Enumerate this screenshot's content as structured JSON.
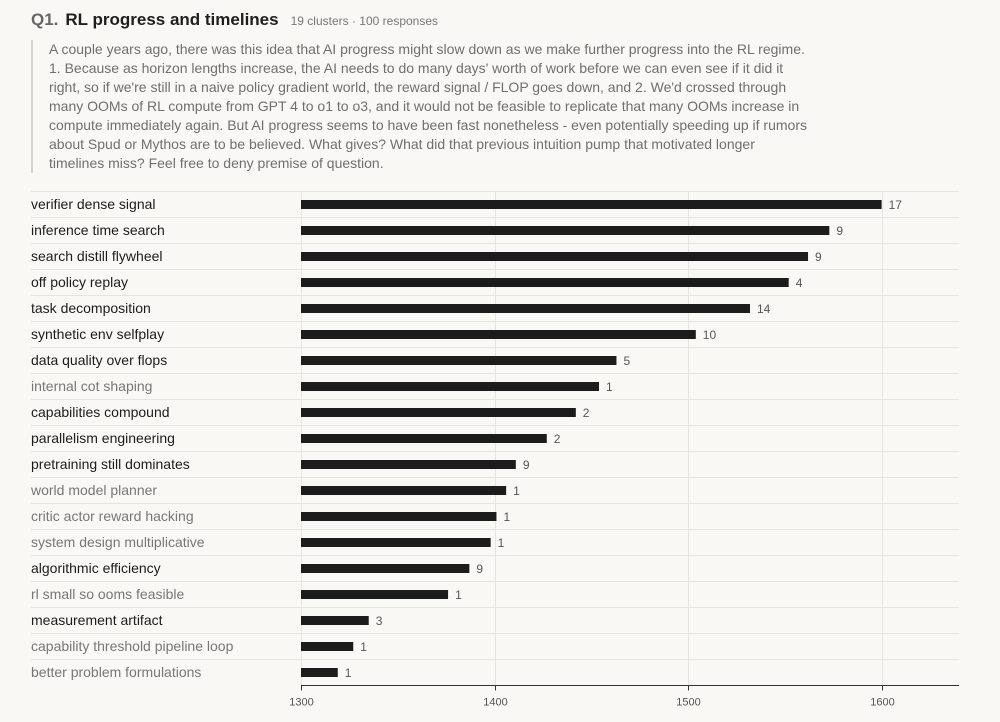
{
  "header": {
    "number": "Q1.",
    "title": "RL progress and timelines",
    "meta": "19 clusters · 100 responses"
  },
  "question": "A couple years ago, there was this idea that AI progress might slow down as we make further progress into the RL regime. 1. Because as horizon lengths increase, the AI needs to do many days' worth of work before we can even see if it did it right, so if we're still in a naive policy gradient world, the reward signal / FLOP goes down, and 2. We'd crossed through many OOMs of RL compute from GPT 4 to o1 to o3, and it would not be feasible to replicate that many OOMs increase in compute immediately again. But AI progress seems to have been fast nonetheless - even potentially speeding up if rumors about Spud or Mythos are to be believed. What gives? What did that previous intuition pump that motivated longer timelines miss? Feel free to deny premise of question.",
  "colors": {
    "bar": "#1c1c1c",
    "label_strong": "#1c1c1c",
    "label_muted": "#777777",
    "count": "#555555",
    "grid": "#e6e4df",
    "axis": "#333333"
  },
  "chart_data": {
    "type": "bar",
    "orientation": "horizontal",
    "title": "",
    "xlabel": "",
    "ylabel": "",
    "xlim": [
      1300,
      1640
    ],
    "xticks": [
      1300,
      1400,
      1500,
      1600
    ],
    "grid": true,
    "categories": [
      "verifier dense signal",
      "inference time search",
      "search distill flywheel",
      "off policy replay",
      "task decomposition",
      "synthetic env selfplay",
      "data quality over flops",
      "internal cot shaping",
      "capabilities compound",
      "parallelism engineering",
      "pretraining still dominates",
      "world model planner",
      "critic actor reward hacking",
      "system design multiplicative",
      "algorithmic efficiency",
      "rl small so ooms feasible",
      "measurement artifact",
      "capability threshold pipeline loop",
      "better problem formulations"
    ],
    "values": [
      1600,
      1573,
      1562,
      1552,
      1532,
      1504,
      1463,
      1454,
      1442,
      1427,
      1411,
      1406,
      1401,
      1398,
      1387,
      1376,
      1335,
      1327,
      1319
    ],
    "counts": [
      17,
      9,
      9,
      4,
      14,
      10,
      5,
      1,
      2,
      2,
      9,
      1,
      1,
      1,
      9,
      1,
      3,
      1,
      1
    ]
  }
}
